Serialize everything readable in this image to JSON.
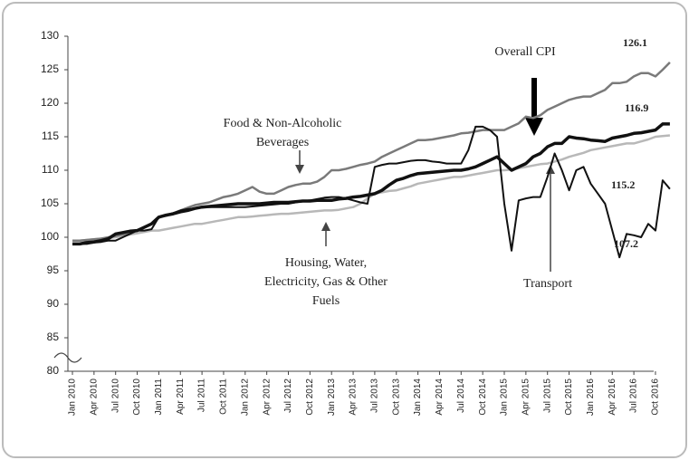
{
  "chart_data": {
    "type": "line",
    "categories": [
      "Jan 2010",
      null,
      null,
      "Apr 2010",
      null,
      null,
      "Jul 2010",
      null,
      null,
      "Oct 2010",
      null,
      null,
      "Jan 2011",
      null,
      null,
      "Apr 2011",
      null,
      null,
      "Jul 2011",
      null,
      null,
      "Oct 2011",
      null,
      null,
      "Jan 2012",
      null,
      null,
      "Apr 2012",
      null,
      null,
      "Jul 2012",
      null,
      null,
      "Oct 2012",
      null,
      null,
      "Jan 2013",
      null,
      null,
      "Apr 2013",
      null,
      null,
      "Jul 2013",
      null,
      null,
      "Oct 2013",
      null,
      null,
      "Jan 2014",
      null,
      null,
      "Apr 2014",
      null,
      null,
      "Jul 2014",
      null,
      null,
      "Oct 2014",
      null,
      null,
      "Jan 2015",
      null,
      null,
      "Apr 2015",
      null,
      null,
      "Jul 2015",
      null,
      null,
      "Oct 2015",
      null,
      null,
      "Jan 2016",
      null,
      null,
      "Apr 2016",
      null,
      null,
      "Jul 2016",
      null,
      null,
      "Oct 2016",
      null,
      null
    ],
    "series": [
      {
        "color": "#7a7a7a",
        "width": 2.5,
        "values": [
          99.5,
          99.5,
          99.6,
          99.7,
          99.8,
          100,
          100.2,
          100.4,
          100.6,
          101,
          101.5,
          102,
          103,
          103.2,
          103.6,
          104,
          104.4,
          104.8,
          105,
          105.2,
          105.6,
          106,
          106.2,
          106.5,
          107,
          107.5,
          106.8,
          106.5,
          106.5,
          107,
          107.5,
          107.8,
          108,
          108,
          108.3,
          109,
          110,
          110,
          110.2,
          110.5,
          110.8,
          111,
          111.3,
          112,
          112.5,
          113,
          113.5,
          114,
          114.5,
          114.5,
          114.6,
          114.8,
          115,
          115.2,
          115.5,
          115.6,
          115.8,
          116,
          116,
          116,
          116,
          116.5,
          117,
          118,
          117.8,
          118.2,
          119,
          119.5,
          120,
          120.5,
          120.8,
          121,
          121,
          121.5,
          122,
          123,
          123,
          123.2,
          124,
          124.5,
          124.5,
          124,
          125,
          126.1
        ]
      },
      {
        "color": "#111111",
        "width": 3.5,
        "values": [
          99,
          99,
          99.2,
          99.3,
          99.5,
          99.8,
          100.5,
          100.7,
          100.9,
          101,
          101.5,
          102,
          103,
          103.3,
          103.5,
          103.8,
          104,
          104.3,
          104.5,
          104.6,
          104.7,
          104.8,
          104.9,
          105,
          105,
          105,
          105,
          105.1,
          105.2,
          105.2,
          105.2,
          105.3,
          105.4,
          105.4,
          105.5,
          105.5,
          105.5,
          105.7,
          105.8,
          106,
          106.1,
          106.3,
          106.5,
          107,
          107.8,
          108.5,
          108.8,
          109.2,
          109.5,
          109.6,
          109.7,
          109.8,
          109.9,
          110,
          110,
          110.2,
          110.5,
          111,
          111.5,
          112,
          111,
          110,
          110.5,
          111,
          112,
          112.5,
          113.5,
          114,
          114,
          115,
          114.8,
          114.7,
          114.5,
          114.4,
          114.3,
          114.8,
          115,
          115.2,
          115.5,
          115.6,
          115.8,
          116,
          116.9,
          116.9
        ]
      },
      {
        "color": "#b8b8b8",
        "width": 2.5,
        "values": [
          99.5,
          99.5,
          99.6,
          99.7,
          99.8,
          99.9,
          100,
          100.2,
          100.4,
          100.6,
          100.8,
          101,
          101,
          101.2,
          101.4,
          101.6,
          101.8,
          102,
          102,
          102.2,
          102.4,
          102.6,
          102.8,
          103,
          103,
          103.1,
          103.2,
          103.3,
          103.4,
          103.5,
          103.5,
          103.6,
          103.7,
          103.8,
          103.9,
          104,
          104,
          104.1,
          104.3,
          104.5,
          105,
          105.8,
          106.5,
          106.7,
          106.9,
          107,
          107.3,
          107.6,
          108,
          108.2,
          108.4,
          108.6,
          108.8,
          109,
          109,
          109.2,
          109.4,
          109.6,
          109.8,
          110,
          110,
          110.1,
          110.3,
          110.5,
          110.7,
          110.9,
          111,
          111.3,
          111.6,
          112,
          112.3,
          112.6,
          113,
          113.2,
          113.4,
          113.6,
          113.8,
          114,
          114,
          114.3,
          114.6,
          115,
          115.1,
          115.2
        ]
      },
      {
        "color": "#111111",
        "width": 2,
        "values": [
          99,
          99,
          99,
          99.2,
          99.3,
          99.5,
          99.5,
          100,
          100.5,
          101,
          101,
          101.2,
          103,
          103.3,
          103.6,
          104,
          104.2,
          104.3,
          104.5,
          104.5,
          104.5,
          104.5,
          104.5,
          104.5,
          104.5,
          104.6,
          104.7,
          104.8,
          104.9,
          105,
          105,
          105.2,
          105.4,
          105.5,
          105.7,
          105.9,
          106,
          106,
          105.8,
          105.5,
          105.2,
          105,
          110.5,
          110.8,
          111,
          111,
          111.2,
          111.4,
          111.5,
          111.5,
          111.3,
          111.2,
          111,
          111,
          111,
          113,
          116.5,
          116.5,
          116,
          115,
          105,
          98,
          105.5,
          105.8,
          106,
          106,
          109,
          112.5,
          110,
          107,
          110,
          110.5,
          108,
          106.5,
          105,
          101,
          97,
          100.5,
          100.3,
          100,
          102,
          101,
          108.5,
          107.2
        ]
      }
    ],
    "ylim": [
      80,
      130
    ],
    "yticks": [
      80,
      85,
      90,
      95,
      100,
      105,
      110,
      115,
      120,
      125,
      130
    ],
    "axis_break": true,
    "annotations": [
      {
        "lines": [
          "Overall CPI"
        ]
      },
      {
        "lines": [
          "Food & Non-Alcoholic",
          "Beverages"
        ]
      },
      {
        "lines": [
          "Housing, Water,",
          "Electricity, Gas & Other",
          "Fuels"
        ]
      },
      {
        "lines": [
          "Transport"
        ]
      }
    ]
  }
}
